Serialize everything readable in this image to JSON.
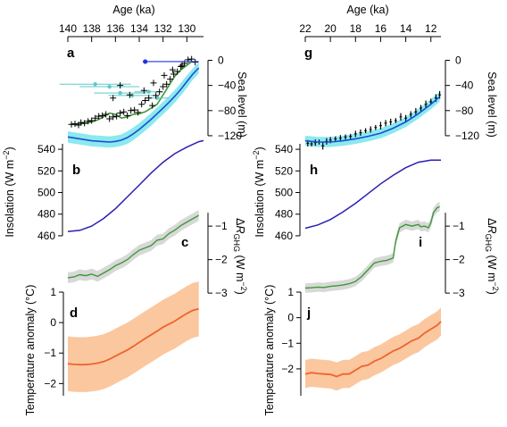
{
  "chart_data": [
    {
      "panel": "a",
      "type": "line",
      "xlabel": "Age (ka)",
      "xlim": [
        140,
        128.6
      ],
      "xticks": [
        140,
        138,
        136,
        134,
        132,
        130
      ],
      "ylabel": "Sea level (m)",
      "ylim": [
        -140,
        5
      ],
      "yticks": [
        0,
        -40,
        -80,
        -120
      ],
      "reconstruction": {
        "x": [
          140,
          139,
          138,
          137,
          136.5,
          136,
          135.5,
          135,
          134.5,
          134,
          133.5,
          133,
          132.5,
          132,
          131.5,
          131,
          130.5,
          130,
          129.5,
          129
        ],
        "mean": [
          -122,
          -125,
          -128,
          -129.5,
          -130,
          -129,
          -127,
          -123,
          -117,
          -110,
          -102,
          -94,
          -85,
          -76,
          -67,
          -57,
          -46,
          -34,
          -22,
          -12
        ],
        "band": [
          9,
          9,
          9,
          9,
          9,
          9,
          9,
          10,
          10,
          10,
          10,
          10,
          10,
          10,
          10,
          10,
          10,
          10,
          9,
          9
        ]
      },
      "green_curve": {
        "x": [
          139.7,
          139,
          138.5,
          138,
          137.5,
          137,
          136.5,
          136,
          135.5,
          135,
          134.5,
          134,
          133.5,
          133,
          132.5,
          132,
          131.5,
          131,
          130.5,
          130,
          129.6
        ],
        "y": [
          -102,
          -101,
          -100,
          -98,
          -95,
          -90,
          -84,
          -86,
          -92,
          -90,
          -86,
          -85,
          -82,
          -76,
          -70,
          -55,
          -40,
          -25,
          -15,
          -8,
          -2
        ]
      },
      "crosses": {
        "x": [
          139.7,
          139.4,
          139.1,
          138.9,
          138.6,
          138.3,
          138,
          137.7,
          137.4,
          137.1,
          136.8,
          136.5,
          136.2,
          135.9,
          135.6,
          135.3,
          135,
          134.7,
          134.4,
          134.1,
          133.8,
          133.5,
          133.2,
          132.9,
          132.6,
          132.3,
          132,
          131.7,
          131.4,
          131.1,
          130.8,
          130.5,
          130.2,
          129.9,
          129.6,
          129.3,
          136.2,
          135.6,
          134.8,
          133.6,
          132.8,
          131.9,
          131.2,
          130.4
        ],
        "y": [
          -102,
          -101,
          -103,
          -99,
          -100,
          -97,
          -96,
          -92,
          -89,
          -88,
          -86,
          -93,
          -90,
          -89,
          -84,
          -82,
          -88,
          -80,
          -79,
          -83,
          -70,
          -64,
          -60,
          -72,
          -56,
          -50,
          -42,
          -38,
          -30,
          -22,
          -18,
          -10,
          -5,
          1,
          2,
          -3,
          -60,
          -40,
          -55,
          -48,
          -36,
          -24,
          -15,
          -8
        ]
      },
      "cyan_points": {
        "x": [
          137.7,
          136.5,
          135.6,
          134.6,
          133.2,
          132.5
        ],
        "y": [
          -38,
          -42,
          -52,
          -56,
          -50,
          -60
        ],
        "xerr": [
          3,
          2.5,
          2.2,
          2,
          1.2,
          1
        ]
      },
      "blue_point": {
        "x": 133.5,
        "y": -2,
        "xerr_right": 4.5
      }
    },
    {
      "panel": "b",
      "type": "line",
      "ylabel": "Insolation (W m−2)",
      "ylim": [
        455,
        550
      ],
      "yticks": [
        540,
        520,
        500,
        480,
        460
      ],
      "x": [
        140,
        139,
        138,
        137,
        136,
        135,
        134,
        133,
        132,
        131,
        130,
        129,
        128.6
      ],
      "y": [
        464,
        465,
        469,
        476,
        485,
        496,
        507,
        518,
        528,
        536,
        542,
        547,
        548
      ]
    },
    {
      "panel": "c",
      "type": "line",
      "ylabel": "ΔR_GHG (W m−2)",
      "ylim": [
        -3.05,
        -0.25
      ],
      "yticks": [
        -1,
        -2,
        -3
      ],
      "x": [
        140,
        139.5,
        139,
        138.5,
        138,
        137.5,
        137,
        136.5,
        136,
        135.5,
        135,
        134.5,
        134,
        133.5,
        133,
        132.5,
        132,
        131.5,
        131,
        130.5,
        130,
        129.5,
        129
      ],
      "y": [
        -2.54,
        -2.52,
        -2.45,
        -2.48,
        -2.43,
        -2.5,
        -2.4,
        -2.3,
        -2.18,
        -2.1,
        -2.0,
        -1.85,
        -1.72,
        -1.65,
        -1.58,
        -1.42,
        -1.38,
        -1.22,
        -1.12,
        -0.98,
        -0.88,
        -0.78,
        -0.68
      ],
      "band": 0.16
    },
    {
      "panel": "d",
      "type": "line",
      "ylabel": "Temperature anomaly (°C)",
      "ylim": [
        -2.4,
        1.0
      ],
      "yticks": [
        1,
        0,
        -1,
        -2
      ],
      "x": [
        140,
        139.5,
        139,
        138.5,
        138,
        137.5,
        137,
        136.5,
        136,
        135.5,
        135,
        134.5,
        134,
        133.5,
        133,
        132.5,
        132,
        131.5,
        131,
        130.5,
        130,
        129.5,
        129
      ],
      "y": [
        -1.35,
        -1.37,
        -1.38,
        -1.38,
        -1.36,
        -1.33,
        -1.28,
        -1.2,
        -1.1,
        -1.0,
        -0.9,
        -0.78,
        -0.65,
        -0.52,
        -0.4,
        -0.28,
        -0.15,
        -0.05,
        0.05,
        0.18,
        0.3,
        0.4,
        0.45
      ],
      "band": 0.9
    },
    {
      "panel": "g",
      "type": "line",
      "xlabel": "Age (ka)",
      "xlim": [
        22,
        11.2
      ],
      "xticks": [
        22,
        20,
        18,
        16,
        14,
        12
      ],
      "ylabel": "Sea level (m)",
      "ylim": [
        -140,
        5
      ],
      "yticks": [
        0,
        -40,
        -80,
        -120
      ],
      "reconstruction": {
        "x": [
          22,
          21,
          20,
          19,
          18,
          17,
          16,
          15,
          14,
          13,
          12,
          11.3
        ],
        "mean": [
          -128,
          -130,
          -130,
          -128,
          -125,
          -121,
          -116,
          -108,
          -98,
          -85,
          -70,
          -58
        ],
        "band": 8
      },
      "data_bars": {
        "x": [
          21.8,
          21.5,
          21.2,
          20.9,
          20.6,
          20.3,
          20,
          19.6,
          19.2,
          18.8,
          18.4,
          18,
          17.6,
          17.2,
          16.8,
          16.4,
          16,
          15.6,
          15.2,
          14.8,
          14.4,
          14,
          13.6,
          13.2,
          12.8,
          12.4,
          12,
          11.6,
          11.3
        ],
        "y": [
          -132,
          -133,
          -131,
          -130,
          -136,
          -129,
          -127,
          -125,
          -124,
          -122,
          -121,
          -117,
          -115,
          -112,
          -110,
          -107,
          -104,
          -100,
          -98,
          -96,
          -90,
          -92,
          -86,
          -82,
          -76,
          -70,
          -66,
          -60,
          -55
        ],
        "err": [
          5,
          4,
          5,
          4,
          6,
          5,
          5,
          4,
          5,
          4,
          4,
          5,
          5,
          4,
          5,
          4,
          6,
          5,
          5,
          4,
          6,
          5,
          5,
          6,
          5,
          6,
          5,
          6,
          6
        ]
      }
    },
    {
      "panel": "h",
      "type": "line",
      "ylabel": "Insolation (W m−2)",
      "ylim": [
        455,
        550
      ],
      "yticks": [
        540,
        520,
        500,
        480,
        460
      ],
      "x": [
        22,
        21,
        20,
        19,
        18,
        17,
        16,
        15,
        14,
        13,
        12,
        11.2
      ],
      "y": [
        467,
        470,
        475,
        482,
        490,
        499,
        508,
        516,
        523,
        528,
        530,
        530
      ]
    },
    {
      "panel": "i",
      "type": "line",
      "ylabel": "ΔR_GHG (W m−2)",
      "ylim": [
        -3.05,
        -0.25
      ],
      "yticks": [
        -1,
        -2,
        -3
      ],
      "x": [
        22,
        21.5,
        21,
        20.5,
        20,
        19.5,
        19,
        18.5,
        18,
        17.5,
        17,
        16.5,
        16,
        15.5,
        15,
        14.8,
        14.5,
        14,
        13.5,
        13,
        12.8,
        12.5,
        12.2,
        12,
        11.8,
        11.5,
        11.3
      ],
      "y": [
        -2.85,
        -2.84,
        -2.82,
        -2.83,
        -2.8,
        -2.78,
        -2.76,
        -2.72,
        -2.65,
        -2.5,
        -2.3,
        -2.1,
        -2.05,
        -2.02,
        -1.95,
        -1.45,
        -1.05,
        -0.95,
        -1.0,
        -0.95,
        -1.02,
        -1.0,
        -1.05,
        -0.9,
        -0.6,
        -0.45,
        -0.42
      ],
      "band": 0.14
    },
    {
      "panel": "j",
      "type": "line",
      "ylabel": "Temperature anomaly (°C)",
      "ylim": [
        -3.05,
        1.0
      ],
      "yticks": [
        1,
        0,
        -1,
        -2
      ],
      "x": [
        22,
        21.5,
        21,
        20.5,
        20,
        19.5,
        19,
        18.5,
        18,
        17.5,
        17,
        16.5,
        16,
        15.5,
        15,
        14.5,
        14,
        13.5,
        13,
        12.5,
        12,
        11.5,
        11.2
      ],
      "y": [
        -2.2,
        -2.15,
        -2.18,
        -2.2,
        -2.22,
        -2.3,
        -2.2,
        -2.2,
        -2.05,
        -1.9,
        -1.85,
        -1.7,
        -1.6,
        -1.45,
        -1.3,
        -1.2,
        -1.05,
        -0.9,
        -0.8,
        -0.6,
        -0.45,
        -0.3,
        -0.15
      ],
      "band": 0.55
    }
  ],
  "colors": {
    "sea_band": "#8ce9ee",
    "sea_line": "#1a4fd6",
    "insolation": "#2a1fb0",
    "ghg_band": "#d8d8d8",
    "ghg_line": "#3c9a35",
    "temp_band": "#fbc79f",
    "temp_line": "#ee6430",
    "green_curve": "#3c9a35",
    "cyan_points": "#5fc8c8",
    "blue_point": "#2233dd"
  }
}
